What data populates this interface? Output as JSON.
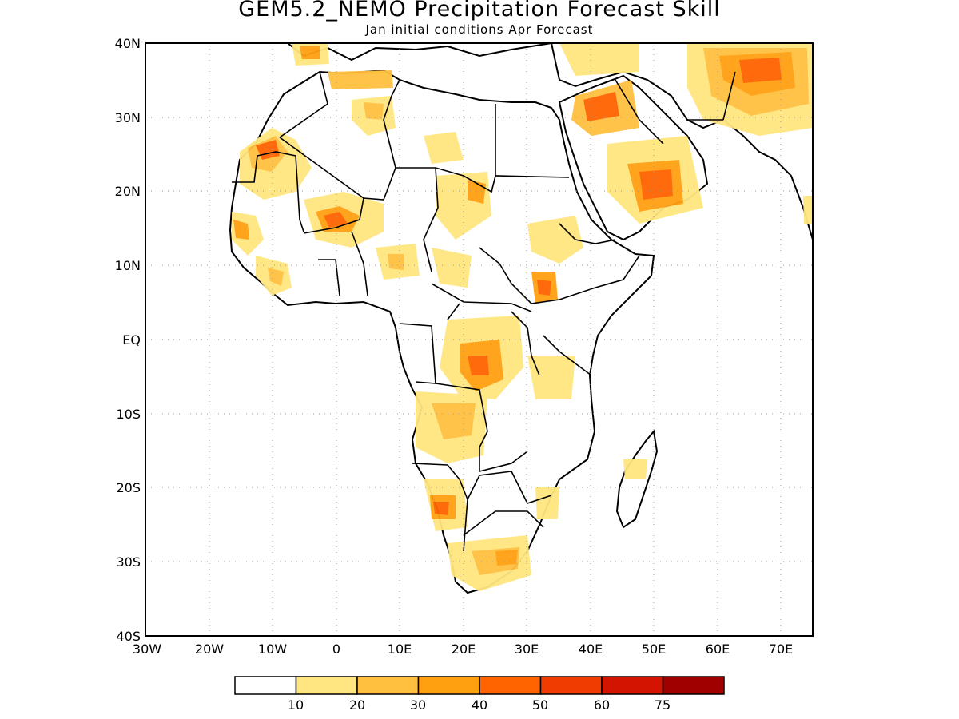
{
  "title": "GEM5.2_NEMO Precipitation Forecast Skill",
  "subtitle": "Jan initial conditions  Apr Forecast",
  "lat_labels": [
    "40N",
    "30N",
    "20N",
    "10N",
    "EQ",
    "10S",
    "20S",
    "30S",
    "40S"
  ],
  "lon_labels": [
    "30W",
    "20W",
    "10W",
    "0",
    "10E",
    "20E",
    "30E",
    "40E",
    "50E",
    "60E",
    "70E"
  ],
  "colorbar": {
    "labels": [
      "10",
      "20",
      "30",
      "40",
      "50",
      "60",
      "75"
    ],
    "colors": [
      "#ffffff",
      "#ffe680",
      "#ffc040",
      "#ffa010",
      "#ff6400",
      "#f03c00",
      "#d21400",
      "#a00000"
    ]
  },
  "map": {
    "lon_range": [
      -30,
      75
    ],
    "lat_range": [
      -40,
      40
    ],
    "coastline_color": "#000000",
    "grid": "dotted"
  }
}
